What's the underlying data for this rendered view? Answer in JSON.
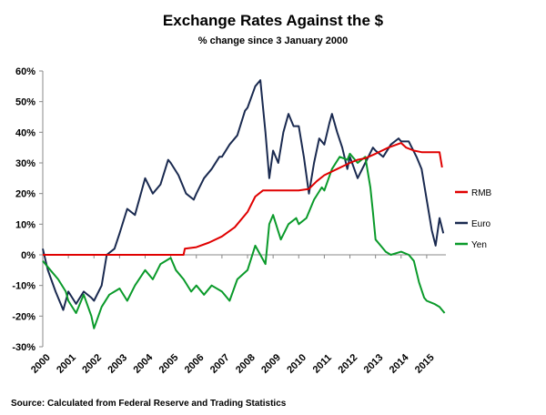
{
  "chart_data": {
    "type": "line",
    "title": "Exchange Rates Against the $",
    "subtitle": "% change since 3 January 2000",
    "source": "Source: Calculated from Federal Reserve  and Trading Statistics",
    "xlabel": "",
    "ylabel": "",
    "x_ticks": [
      "2000",
      "2001",
      "2002",
      "2003",
      "2004",
      "2005",
      "2006",
      "2007",
      "2008",
      "2009",
      "2010",
      "2011",
      "2012",
      "2013",
      "2014",
      "2015"
    ],
    "y_ticks": [
      "60%",
      "50%",
      "40%",
      "30%",
      "20%",
      "10%",
      "0%",
      "-10%",
      "-20%",
      "-30%"
    ],
    "xlim": [
      2000,
      2015.75
    ],
    "ylim": [
      -30,
      60
    ],
    "grid": false,
    "legend_position": "right",
    "series": [
      {
        "name": "RMB",
        "color": "#e00000",
        "points": [
          [
            2000,
            0
          ],
          [
            2005.5,
            0
          ],
          [
            2005.55,
            2
          ],
          [
            2006,
            2.5
          ],
          [
            2006.5,
            4
          ],
          [
            2007,
            6
          ],
          [
            2007.5,
            9
          ],
          [
            2008,
            14
          ],
          [
            2008.3,
            19
          ],
          [
            2008.6,
            21
          ],
          [
            2009,
            21
          ],
          [
            2009.5,
            21
          ],
          [
            2010,
            21
          ],
          [
            2010.4,
            21.5
          ],
          [
            2010.7,
            24
          ],
          [
            2011,
            26
          ],
          [
            2011.5,
            28
          ],
          [
            2012,
            30
          ],
          [
            2012.3,
            31
          ],
          [
            2012.6,
            31.5
          ],
          [
            2013,
            33
          ],
          [
            2013.5,
            35
          ],
          [
            2014,
            36.5
          ],
          [
            2014.2,
            35
          ],
          [
            2014.5,
            34
          ],
          [
            2014.8,
            33.5
          ],
          [
            2015,
            33.5
          ],
          [
            2015.5,
            33.5
          ],
          [
            2015.6,
            28.5
          ]
        ]
      },
      {
        "name": "Euro",
        "color": "#1a2a50",
        "points": [
          [
            2000,
            2
          ],
          [
            2000.2,
            -5
          ],
          [
            2000.5,
            -12
          ],
          [
            2000.8,
            -18
          ],
          [
            2001,
            -12
          ],
          [
            2001.3,
            -16
          ],
          [
            2001.6,
            -12
          ],
          [
            2001.9,
            -14
          ],
          [
            2002,
            -15
          ],
          [
            2002.3,
            -10
          ],
          [
            2002.5,
            0
          ],
          [
            2002.8,
            2
          ],
          [
            2003,
            7
          ],
          [
            2003.3,
            15
          ],
          [
            2003.6,
            13
          ],
          [
            2003.9,
            22
          ],
          [
            2004,
            25
          ],
          [
            2004.3,
            20
          ],
          [
            2004.6,
            23
          ],
          [
            2004.9,
            31
          ],
          [
            2005,
            30
          ],
          [
            2005.3,
            26
          ],
          [
            2005.6,
            20
          ],
          [
            2005.9,
            18
          ],
          [
            2006,
            20
          ],
          [
            2006.3,
            25
          ],
          [
            2006.6,
            28
          ],
          [
            2006.9,
            32
          ],
          [
            2007,
            32
          ],
          [
            2007.3,
            36
          ],
          [
            2007.6,
            39
          ],
          [
            2007.9,
            47
          ],
          [
            2008,
            48
          ],
          [
            2008.3,
            55
          ],
          [
            2008.5,
            57
          ],
          [
            2008.7,
            40
          ],
          [
            2008.85,
            25
          ],
          [
            2009,
            34
          ],
          [
            2009.2,
            30
          ],
          [
            2009.4,
            40
          ],
          [
            2009.6,
            46
          ],
          [
            2009.8,
            42
          ],
          [
            2010,
            42
          ],
          [
            2010.2,
            32
          ],
          [
            2010.4,
            20
          ],
          [
            2010.6,
            30
          ],
          [
            2010.8,
            38
          ],
          [
            2011,
            36
          ],
          [
            2011.2,
            43
          ],
          [
            2011.3,
            46
          ],
          [
            2011.5,
            40
          ],
          [
            2011.7,
            35
          ],
          [
            2011.9,
            28
          ],
          [
            2012,
            32
          ],
          [
            2012.3,
            25
          ],
          [
            2012.6,
            30
          ],
          [
            2012.9,
            35
          ],
          [
            2013,
            34
          ],
          [
            2013.3,
            32
          ],
          [
            2013.6,
            36
          ],
          [
            2013.9,
            38
          ],
          [
            2014,
            37
          ],
          [
            2014.3,
            37
          ],
          [
            2014.6,
            32
          ],
          [
            2014.8,
            28
          ],
          [
            2015,
            18
          ],
          [
            2015.2,
            8
          ],
          [
            2015.35,
            3
          ],
          [
            2015.5,
            12
          ],
          [
            2015.65,
            7
          ]
        ]
      },
      {
        "name": "Yen",
        "color": "#0a9a2a",
        "points": [
          [
            2000,
            -2
          ],
          [
            2000.3,
            -5
          ],
          [
            2000.6,
            -8
          ],
          [
            2000.9,
            -12
          ],
          [
            2001,
            -15
          ],
          [
            2001.3,
            -19
          ],
          [
            2001.6,
            -13
          ],
          [
            2001.9,
            -20
          ],
          [
            2002,
            -24
          ],
          [
            2002.3,
            -17
          ],
          [
            2002.6,
            -13
          ],
          [
            2003,
            -11
          ],
          [
            2003.3,
            -15
          ],
          [
            2003.6,
            -10
          ],
          [
            2004,
            -5
          ],
          [
            2004.3,
            -8
          ],
          [
            2004.6,
            -3
          ],
          [
            2005,
            -1
          ],
          [
            2005.2,
            -5
          ],
          [
            2005.5,
            -8
          ],
          [
            2005.8,
            -12
          ],
          [
            2006,
            -10
          ],
          [
            2006.3,
            -13
          ],
          [
            2006.6,
            -10
          ],
          [
            2007,
            -12
          ],
          [
            2007.3,
            -15
          ],
          [
            2007.6,
            -8
          ],
          [
            2008,
            -5
          ],
          [
            2008.3,
            3
          ],
          [
            2008.5,
            0
          ],
          [
            2008.7,
            -3
          ],
          [
            2008.85,
            10
          ],
          [
            2009,
            13
          ],
          [
            2009.3,
            5
          ],
          [
            2009.6,
            10
          ],
          [
            2009.9,
            12
          ],
          [
            2010,
            10
          ],
          [
            2010.3,
            12
          ],
          [
            2010.6,
            18
          ],
          [
            2010.9,
            22
          ],
          [
            2011,
            21
          ],
          [
            2011.3,
            28
          ],
          [
            2011.6,
            32
          ],
          [
            2011.9,
            31
          ],
          [
            2012,
            33
          ],
          [
            2012.3,
            30
          ],
          [
            2012.6,
            32
          ],
          [
            2012.8,
            22
          ],
          [
            2012.9,
            14
          ],
          [
            2013,
            5
          ],
          [
            2013.2,
            3
          ],
          [
            2013.4,
            1
          ],
          [
            2013.6,
            0
          ],
          [
            2014,
            1
          ],
          [
            2014.3,
            0
          ],
          [
            2014.5,
            -2
          ],
          [
            2014.7,
            -9
          ],
          [
            2014.9,
            -14
          ],
          [
            2015,
            -15
          ],
          [
            2015.3,
            -16
          ],
          [
            2015.5,
            -17
          ],
          [
            2015.7,
            -19
          ]
        ]
      }
    ]
  }
}
